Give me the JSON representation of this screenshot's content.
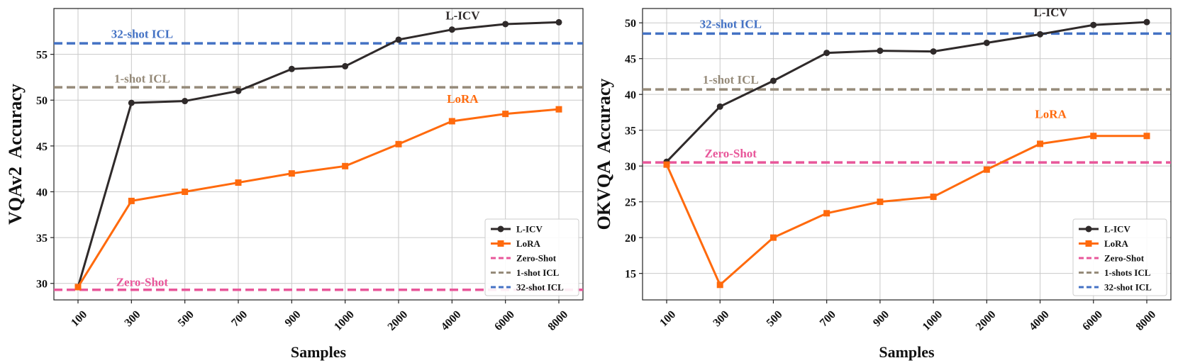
{
  "chart_data": [
    {
      "type": "line",
      "categories": [
        "100",
        "300",
        "500",
        "700",
        "900",
        "1000",
        "2000",
        "4000",
        "6000",
        "8000"
      ],
      "xlabel": "Samples",
      "ylabel": "VQAv2  Accuracy",
      "ylim": [
        28.2,
        60.0
      ],
      "yticks": [
        30,
        35,
        40,
        45,
        50,
        55
      ],
      "grid": true,
      "legend_position": "bottom-right",
      "series": [
        {
          "name": "L-ICV",
          "color": "#2f2a2a",
          "marker": "circle",
          "values": [
            29.6,
            49.7,
            49.9,
            51.0,
            53.4,
            53.7,
            56.6,
            57.7,
            58.3,
            58.5
          ]
        },
        {
          "name": "LoRA",
          "color": "#ff6a0d",
          "marker": "square",
          "values": [
            29.6,
            39.0,
            40.0,
            41.0,
            42.0,
            42.8,
            45.2,
            47.7,
            48.5,
            49.0
          ]
        }
      ],
      "baselines": [
        {
          "name": "Zero-Shot",
          "value": 29.3,
          "color": "#e8579a"
        },
        {
          "name": "1-shot ICL",
          "value": 51.4,
          "color": "#968b7a"
        },
        {
          "name": "32-shot ICL",
          "value": 56.2,
          "color": "#4472c4"
        }
      ],
      "annotations": [
        {
          "text": "L-ICV",
          "x_index": 7.2,
          "y": 58.8,
          "color": "#2f2a2a"
        },
        {
          "text": "32-shot ICL",
          "x_index": 1.2,
          "y": 56.8,
          "color": "#4472c4"
        },
        {
          "text": "1-shot ICL",
          "x_index": 1.2,
          "y": 51.9,
          "color": "#968b7a"
        },
        {
          "text": "LoRA",
          "x_index": 7.2,
          "y": 49.7,
          "color": "#ff6a0d"
        },
        {
          "text": "Zero-Shot",
          "x_index": 1.2,
          "y": 29.7,
          "color": "#e8579a"
        }
      ]
    },
    {
      "type": "line",
      "categories": [
        "100",
        "300",
        "500",
        "700",
        "900",
        "1000",
        "2000",
        "4000",
        "6000",
        "8000"
      ],
      "xlabel": "Samples",
      "ylabel": "OKVQA  Accuracy",
      "ylim": [
        11.3,
        52.0
      ],
      "yticks": [
        15,
        20,
        25,
        30,
        35,
        40,
        45,
        50
      ],
      "grid": true,
      "legend_position": "bottom-right",
      "series": [
        {
          "name": "L-ICV",
          "color": "#2f2a2a",
          "marker": "circle",
          "values": [
            30.6,
            38.3,
            41.9,
            45.8,
            46.1,
            46.0,
            47.2,
            48.4,
            49.7,
            50.1
          ]
        },
        {
          "name": "LoRA",
          "color": "#ff6a0d",
          "marker": "square",
          "values": [
            30.2,
            13.4,
            20.0,
            23.4,
            25.0,
            25.7,
            29.5,
            33.1,
            34.2,
            34.2
          ]
        }
      ],
      "baselines": [
        {
          "name": "Zero-Shot",
          "value": 30.5,
          "color": "#e8579a"
        },
        {
          "name": "1-shots ICL",
          "value": 40.7,
          "color": "#968b7a"
        },
        {
          "name": "32-shot ICL",
          "value": 48.5,
          "color": "#4472c4"
        }
      ],
      "annotations": [
        {
          "text": "L-ICV",
          "x_index": 7.2,
          "y": 50.9,
          "color": "#2f2a2a"
        },
        {
          "text": "32-shot ICL",
          "x_index": 1.2,
          "y": 49.3,
          "color": "#4472c4"
        },
        {
          "text": "1-shot ICL",
          "x_index": 1.2,
          "y": 41.5,
          "color": "#968b7a"
        },
        {
          "text": "LoRA",
          "x_index": 7.2,
          "y": 36.7,
          "color": "#ff6a0d"
        },
        {
          "text": "Zero-Shot",
          "x_index": 1.2,
          "y": 31.2,
          "color": "#e8579a"
        }
      ]
    }
  ]
}
